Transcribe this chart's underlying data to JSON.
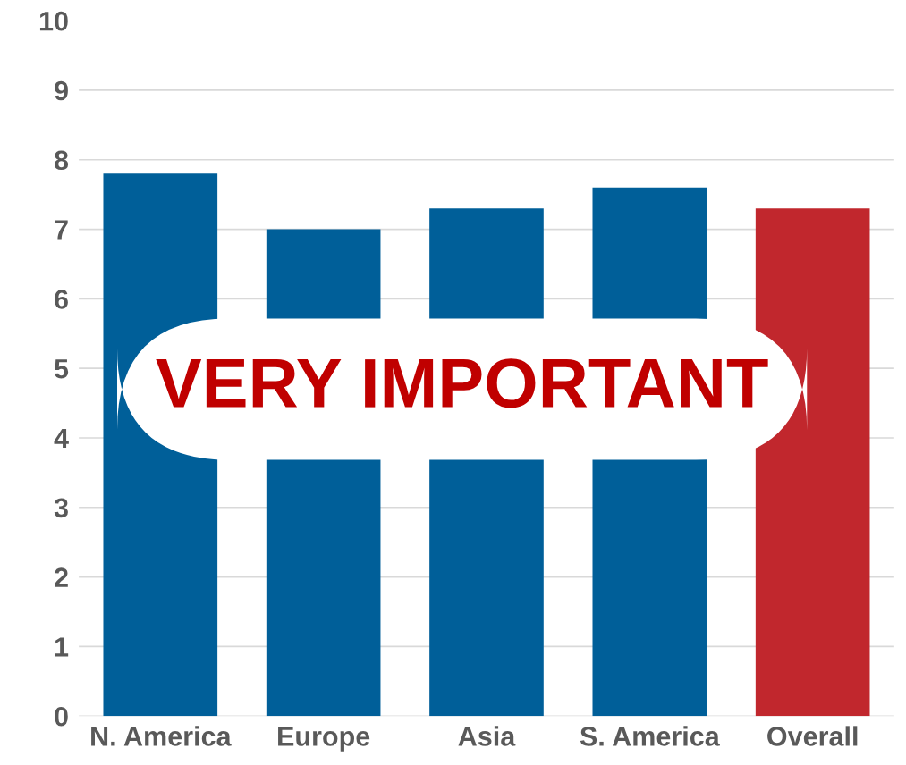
{
  "chart_data": {
    "type": "bar",
    "categories": [
      "N. America",
      "Europe",
      "Asia",
      "S. America",
      "Overall"
    ],
    "values": [
      7.8,
      7.0,
      7.3,
      7.6,
      7.3
    ],
    "colors": [
      "#005f99",
      "#005f99",
      "#005f99",
      "#005f99",
      "#c1272d"
    ],
    "ylim": [
      0,
      10
    ],
    "yticks": [
      0,
      1,
      2,
      3,
      4,
      5,
      6,
      7,
      8,
      9,
      10
    ],
    "grid": "y",
    "annotations": [
      "VERY IMPORTANT"
    ]
  }
}
